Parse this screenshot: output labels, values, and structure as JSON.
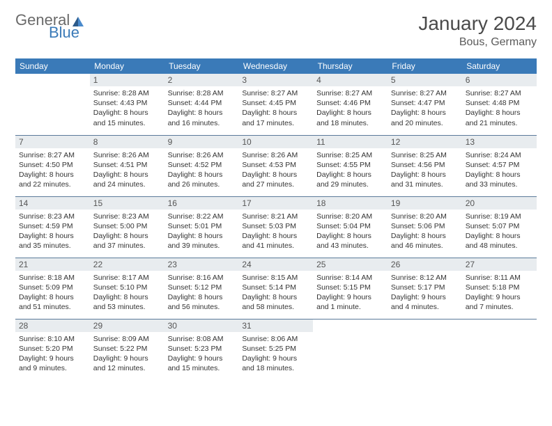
{
  "logo": {
    "text1": "General",
    "text2": "Blue"
  },
  "title": "January 2024",
  "location": "Bous, Germany",
  "colors": {
    "header_bg": "#3a7ab8",
    "header_text": "#ffffff",
    "daynum_bg": "#e8ecef",
    "daynum_text": "#555555",
    "body_text": "#333333",
    "row_border": "#5a7a9a",
    "logo_gray": "#6a6a6a",
    "logo_blue": "#3a7ab8",
    "title_color": "#4a4a4a"
  },
  "day_headers": [
    "Sunday",
    "Monday",
    "Tuesday",
    "Wednesday",
    "Thursday",
    "Friday",
    "Saturday"
  ],
  "start_offset": 1,
  "days": [
    {
      "n": 1,
      "sunrise": "8:28 AM",
      "sunset": "4:43 PM",
      "daylight": "8 hours and 15 minutes."
    },
    {
      "n": 2,
      "sunrise": "8:28 AM",
      "sunset": "4:44 PM",
      "daylight": "8 hours and 16 minutes."
    },
    {
      "n": 3,
      "sunrise": "8:27 AM",
      "sunset": "4:45 PM",
      "daylight": "8 hours and 17 minutes."
    },
    {
      "n": 4,
      "sunrise": "8:27 AM",
      "sunset": "4:46 PM",
      "daylight": "8 hours and 18 minutes."
    },
    {
      "n": 5,
      "sunrise": "8:27 AM",
      "sunset": "4:47 PM",
      "daylight": "8 hours and 20 minutes."
    },
    {
      "n": 6,
      "sunrise": "8:27 AM",
      "sunset": "4:48 PM",
      "daylight": "8 hours and 21 minutes."
    },
    {
      "n": 7,
      "sunrise": "8:27 AM",
      "sunset": "4:50 PM",
      "daylight": "8 hours and 22 minutes."
    },
    {
      "n": 8,
      "sunrise": "8:26 AM",
      "sunset": "4:51 PM",
      "daylight": "8 hours and 24 minutes."
    },
    {
      "n": 9,
      "sunrise": "8:26 AM",
      "sunset": "4:52 PM",
      "daylight": "8 hours and 26 minutes."
    },
    {
      "n": 10,
      "sunrise": "8:26 AM",
      "sunset": "4:53 PM",
      "daylight": "8 hours and 27 minutes."
    },
    {
      "n": 11,
      "sunrise": "8:25 AM",
      "sunset": "4:55 PM",
      "daylight": "8 hours and 29 minutes."
    },
    {
      "n": 12,
      "sunrise": "8:25 AM",
      "sunset": "4:56 PM",
      "daylight": "8 hours and 31 minutes."
    },
    {
      "n": 13,
      "sunrise": "8:24 AM",
      "sunset": "4:57 PM",
      "daylight": "8 hours and 33 minutes."
    },
    {
      "n": 14,
      "sunrise": "8:23 AM",
      "sunset": "4:59 PM",
      "daylight": "8 hours and 35 minutes."
    },
    {
      "n": 15,
      "sunrise": "8:23 AM",
      "sunset": "5:00 PM",
      "daylight": "8 hours and 37 minutes."
    },
    {
      "n": 16,
      "sunrise": "8:22 AM",
      "sunset": "5:01 PM",
      "daylight": "8 hours and 39 minutes."
    },
    {
      "n": 17,
      "sunrise": "8:21 AM",
      "sunset": "5:03 PM",
      "daylight": "8 hours and 41 minutes."
    },
    {
      "n": 18,
      "sunrise": "8:20 AM",
      "sunset": "5:04 PM",
      "daylight": "8 hours and 43 minutes."
    },
    {
      "n": 19,
      "sunrise": "8:20 AM",
      "sunset": "5:06 PM",
      "daylight": "8 hours and 46 minutes."
    },
    {
      "n": 20,
      "sunrise": "8:19 AM",
      "sunset": "5:07 PM",
      "daylight": "8 hours and 48 minutes."
    },
    {
      "n": 21,
      "sunrise": "8:18 AM",
      "sunset": "5:09 PM",
      "daylight": "8 hours and 51 minutes."
    },
    {
      "n": 22,
      "sunrise": "8:17 AM",
      "sunset": "5:10 PM",
      "daylight": "8 hours and 53 minutes."
    },
    {
      "n": 23,
      "sunrise": "8:16 AM",
      "sunset": "5:12 PM",
      "daylight": "8 hours and 56 minutes."
    },
    {
      "n": 24,
      "sunrise": "8:15 AM",
      "sunset": "5:14 PM",
      "daylight": "8 hours and 58 minutes."
    },
    {
      "n": 25,
      "sunrise": "8:14 AM",
      "sunset": "5:15 PM",
      "daylight": "9 hours and 1 minute."
    },
    {
      "n": 26,
      "sunrise": "8:12 AM",
      "sunset": "5:17 PM",
      "daylight": "9 hours and 4 minutes."
    },
    {
      "n": 27,
      "sunrise": "8:11 AM",
      "sunset": "5:18 PM",
      "daylight": "9 hours and 7 minutes."
    },
    {
      "n": 28,
      "sunrise": "8:10 AM",
      "sunset": "5:20 PM",
      "daylight": "9 hours and 9 minutes."
    },
    {
      "n": 29,
      "sunrise": "8:09 AM",
      "sunset": "5:22 PM",
      "daylight": "9 hours and 12 minutes."
    },
    {
      "n": 30,
      "sunrise": "8:08 AM",
      "sunset": "5:23 PM",
      "daylight": "9 hours and 15 minutes."
    },
    {
      "n": 31,
      "sunrise": "8:06 AM",
      "sunset": "5:25 PM",
      "daylight": "9 hours and 18 minutes."
    }
  ],
  "labels": {
    "sunrise": "Sunrise:",
    "sunset": "Sunset:",
    "daylight": "Daylight:"
  }
}
